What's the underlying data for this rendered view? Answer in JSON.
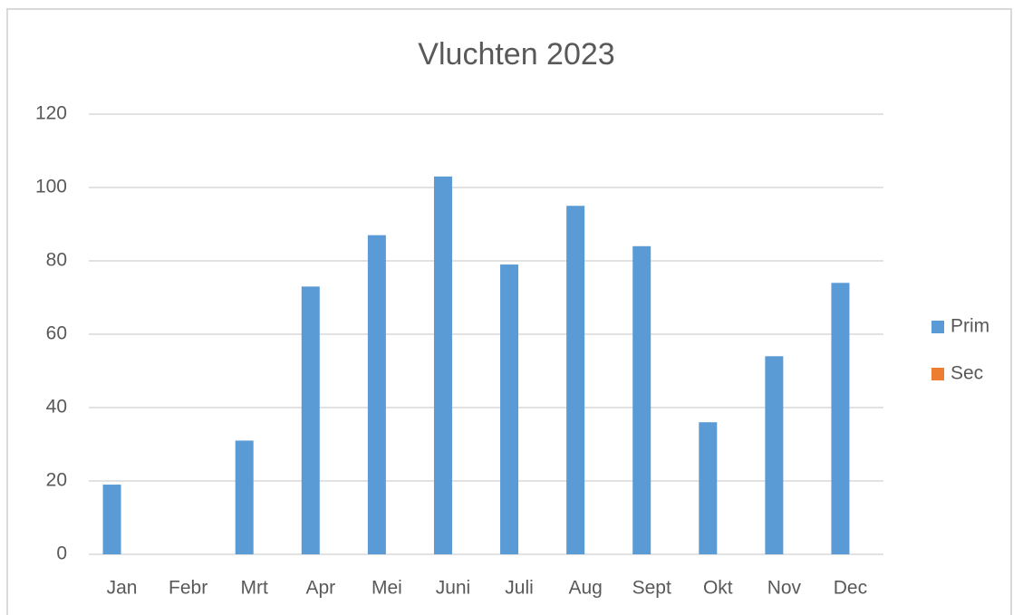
{
  "chart_data": {
    "type": "bar",
    "title": "Vluchten 2023",
    "categories": [
      "Jan",
      "Febr",
      "Mrt",
      "Apr",
      "Mei",
      "Juni",
      "Juli",
      "Aug",
      "Sept",
      "Okt",
      "Nov",
      "Dec"
    ],
    "series": [
      {
        "name": "Prim",
        "color": "#5b9bd5",
        "values": [
          19,
          0,
          31,
          73,
          87,
          103,
          79,
          95,
          84,
          36,
          54,
          74
        ]
      },
      {
        "name": "Sec",
        "color": "#ed7d31",
        "values": [
          null,
          null,
          null,
          null,
          null,
          null,
          null,
          null,
          null,
          null,
          null,
          null
        ]
      }
    ],
    "ylim": [
      0,
      120
    ],
    "yticks": [
      0,
      20,
      40,
      60,
      80,
      100,
      120
    ],
    "grid": true,
    "legend": "right"
  }
}
